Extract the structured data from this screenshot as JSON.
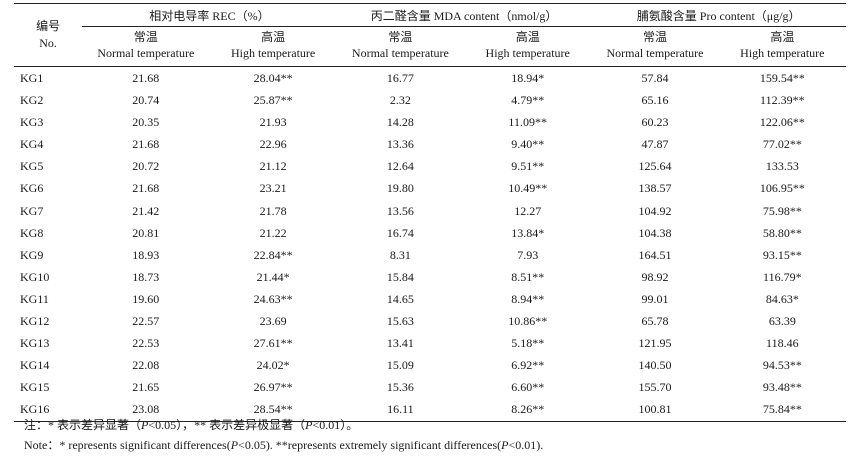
{
  "header": {
    "id_cn": "编号",
    "id_en": "No.",
    "groups": [
      "相对电导率 REC（%）",
      "丙二醛含量 MDA content（nmol/g）",
      "脯氨酸含量 Pro content（μg/g）"
    ],
    "normal_cn": "常温",
    "normal_en": "Normal temperature",
    "high_cn": "高温",
    "high_en": "High temperature"
  },
  "rows": [
    {
      "id": "KG1",
      "v": [
        "21.68",
        "28.04**",
        "16.77",
        "18.94*",
        "57.84",
        "159.54**"
      ]
    },
    {
      "id": "KG2",
      "v": [
        "20.74",
        "25.87**",
        "2.32",
        "4.79**",
        "65.16",
        "112.39**"
      ]
    },
    {
      "id": "KG3",
      "v": [
        "20.35",
        "21.93",
        "14.28",
        "11.09**",
        "60.23",
        "122.06**"
      ]
    },
    {
      "id": "KG4",
      "v": [
        "21.68",
        "22.96",
        "13.36",
        "9.40**",
        "47.87",
        "77.02**"
      ]
    },
    {
      "id": "KG5",
      "v": [
        "20.72",
        "21.12",
        "12.64",
        "9.51**",
        "125.64",
        "133.53"
      ]
    },
    {
      "id": "KG6",
      "v": [
        "21.68",
        "23.21",
        "19.80",
        "10.49**",
        "138.57",
        "106.95**"
      ]
    },
    {
      "id": "KG7",
      "v": [
        "21.42",
        "21.78",
        "13.56",
        "12.27",
        "104.92",
        "75.98**"
      ]
    },
    {
      "id": "KG8",
      "v": [
        "20.81",
        "21.22",
        "16.74",
        "13.84*",
        "104.38",
        "58.80**"
      ]
    },
    {
      "id": "KG9",
      "v": [
        "18.93",
        "22.84**",
        "8.31",
        "7.93",
        "164.51",
        "93.15**"
      ]
    },
    {
      "id": "KG10",
      "v": [
        "18.73",
        "21.44*",
        "15.84",
        "8.51**",
        "98.92",
        "116.79*"
      ]
    },
    {
      "id": "KG11",
      "v": [
        "19.60",
        "24.63**",
        "14.65",
        "8.94**",
        "99.01",
        "84.63*"
      ]
    },
    {
      "id": "KG12",
      "v": [
        "22.57",
        "23.69",
        "15.63",
        "10.86**",
        "65.78",
        "63.39"
      ]
    },
    {
      "id": "KG13",
      "v": [
        "22.53",
        "27.61**",
        "13.41",
        "5.18**",
        "121.95",
        "118.46"
      ]
    },
    {
      "id": "KG14",
      "v": [
        "22.08",
        "24.02*",
        "15.09",
        "6.92**",
        "140.50",
        "94.53**"
      ]
    },
    {
      "id": "KG15",
      "v": [
        "21.65",
        "26.97**",
        "15.36",
        "6.60**",
        "155.70",
        "93.48**"
      ]
    },
    {
      "id": "KG16",
      "v": [
        "23.08",
        "28.54**",
        "16.11",
        "8.26**",
        "100.81",
        "75.84**"
      ]
    }
  ],
  "notes": {
    "cn_a": "注：* 表示差异显著（",
    "p": "P",
    "cn_b": "<0.05），** 表示差异极显著（",
    "cn_c": "<0.01）。",
    "en_a": "Note：* represents significant differences(",
    "en_b": "<0.05). **represents extremely significant differences(",
    "en_c": "<0.01)."
  }
}
